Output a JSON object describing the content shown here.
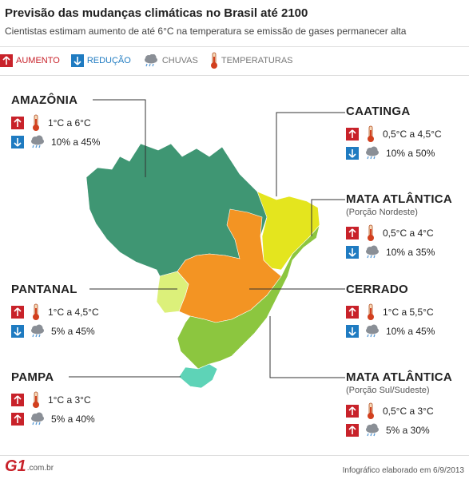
{
  "title": "Previsão das mudanças climáticas no Brasil até 2100",
  "subtitle": "Cientistas estimam aumento de até 6°C na temperatura se emissão de gases permanecer alta",
  "legend": {
    "increase": "AUMENTO",
    "decrease": "REDUÇÃO",
    "rain": "CHUVAS",
    "temperature": "TEMPERATURAS"
  },
  "regions": {
    "amazonia": {
      "name": "AMAZÔNIA",
      "temp": "1°C a 6°C",
      "rain": "10% a 45%"
    },
    "caatinga": {
      "name": "CAATINGA",
      "temp": "0,5°C a 4,5°C",
      "rain": "10% a 50%"
    },
    "mata_ne": {
      "name": "MATA ATLÂNTICA",
      "sub": "(Porção Nordeste)",
      "temp": "0,5°C a 4°C",
      "rain": "10% a 35%"
    },
    "pantanal": {
      "name": "PANTANAL",
      "temp": "1°C a  4,5°C",
      "rain": "5% a 45%"
    },
    "cerrado": {
      "name": "CERRADO",
      "temp": "1°C a 5,5°C",
      "rain": "10% a 45%"
    },
    "pampa": {
      "name": "PAMPA",
      "temp": "1°C a 3°C",
      "rain": "5% a 40%"
    },
    "mata_ss": {
      "name": "MATA ATLÂNTICA",
      "sub": "(Porção Sul/Sudeste)",
      "temp": "0,5°C a 3°C",
      "rain": "5% a 30%"
    }
  },
  "colors": {
    "amazonia": "#3f9673",
    "caatinga": "#e4e51e",
    "cerrado": "#f39423",
    "pantanal": "#dcf07a",
    "mata": "#8cc63f",
    "pampa": "#5ed3b7",
    "increase": "#c8222a",
    "decrease": "#1f7bc1"
  },
  "footer": {
    "logo": "G1",
    "domain": ".com.br",
    "credit": "Infográfico elaborado em 6/9/2013"
  }
}
